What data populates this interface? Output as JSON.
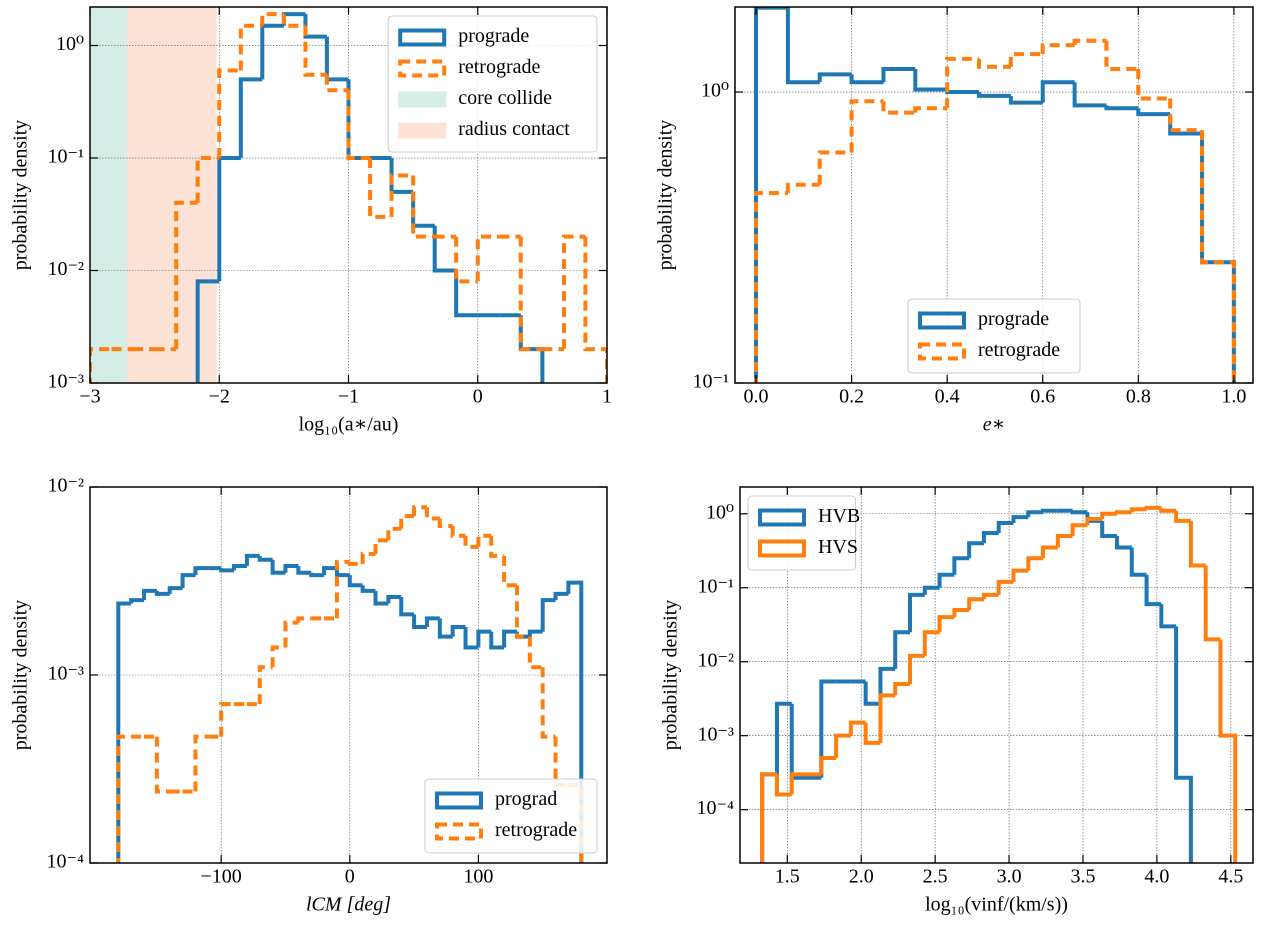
{
  "chart_data": [
    {
      "type": "histogram",
      "xlabel": "log₁₀(a∗/au)",
      "ylabel": "probability density",
      "xlim": [
        -3,
        1
      ],
      "ylim": [
        0.001,
        2.2
      ],
      "log_y": true,
      "grid": true,
      "legend": "upper right",
      "xticks": [
        {
          "value": -3,
          "label": "−3"
        },
        {
          "value": -2,
          "label": "−2"
        },
        {
          "value": -1,
          "label": "−1"
        },
        0,
        1
      ],
      "yticks": [
        {
          "value": 0.001,
          "label": "10⁻³"
        },
        {
          "value": 0.01,
          "label": "10⁻²"
        },
        {
          "value": 0.1,
          "label": "10⁻¹"
        },
        {
          "value": 1,
          "label": "10⁰"
        }
      ],
      "series": [
        {
          "name": "prograde",
          "color": "#1f77b4",
          "dashed": false,
          "bins": [
            -2.167,
            -2.0,
            -1.833,
            -1.667,
            -1.5,
            -1.333,
            -1.167,
            -1.0,
            -0.833,
            -0.667,
            -0.5,
            -0.333,
            -0.167,
            0,
            0.167,
            0.333,
            0.5
          ],
          "values": [
            0.008,
            0.1,
            0.5,
            1.5,
            1.9,
            1.2,
            0.5,
            0.1,
            0.1,
            0.05,
            0.025,
            0.01,
            0.004,
            0.004,
            0.004,
            0.002
          ]
        },
        {
          "name": "retrograde",
          "color": "#ff7f0e",
          "dashed": true,
          "bins": [
            -3,
            -2.833,
            -2.667,
            -2.5,
            -2.333,
            -2.167,
            -2.0,
            -1.833,
            -1.667,
            -1.5,
            -1.333,
            -1.167,
            -1.0,
            -0.833,
            -0.667,
            -0.5,
            -0.333,
            -0.167,
            0,
            0.167,
            0.333,
            0.5,
            0.667,
            0.833,
            1
          ],
          "values": [
            0.002,
            0.002,
            0.002,
            0.002,
            0.04,
            0.1,
            0.6,
            1.5,
            1.9,
            1.5,
            0.55,
            0.4,
            0.1,
            0.03,
            0.07,
            0.02,
            0.02,
            0.008,
            0.02,
            0.02,
            0.002,
            0.002,
            0.02,
            0.002
          ]
        }
      ],
      "spans": [
        {
          "name": "core collide",
          "color": "#d4ede6",
          "x": [
            -3,
            -2.71
          ]
        },
        {
          "name": "radius contact",
          "color": "#fde2d6",
          "x": [
            -2.71,
            -2.02
          ]
        }
      ]
    },
    {
      "type": "histogram",
      "xlabel": "e∗",
      "ylabel": "probability density",
      "xlim": [
        -0.044,
        1.04
      ],
      "ylim": [
        0.1,
        1.96
      ],
      "log_y": true,
      "grid": true,
      "legend": "lower center",
      "xticks": [
        {
          "value": 0,
          "label": "0.0"
        },
        0.2,
        0.4,
        0.6,
        0.8,
        {
          "value": 1,
          "label": "1.0"
        }
      ],
      "yticks": [
        {
          "value": 0.1,
          "label": "10⁻¹"
        },
        {
          "value": 1,
          "label": "10⁰"
        }
      ],
      "series": [
        {
          "name": "prograde",
          "color": "#1f77b4",
          "dashed": false,
          "bins": [
            0,
            0.0667,
            0.1333,
            0.2,
            0.2667,
            0.3333,
            0.4,
            0.4667,
            0.5333,
            0.6,
            0.6667,
            0.7333,
            0.8,
            0.8667,
            0.9333,
            1
          ],
          "values": [
            1.95,
            1.08,
            1.15,
            1.08,
            1.2,
            1.02,
            1.0,
            0.97,
            0.92,
            1.08,
            0.9,
            0.88,
            0.84,
            0.72,
            0.26
          ]
        },
        {
          "name": "retrograde",
          "color": "#ff7f0e",
          "dashed": true,
          "bins": [
            0,
            0.0667,
            0.1333,
            0.2,
            0.2667,
            0.3333,
            0.4,
            0.4667,
            0.5333,
            0.6,
            0.6667,
            0.7333,
            0.8,
            0.8667,
            0.9333,
            1
          ],
          "values": [
            0.45,
            0.48,
            0.62,
            0.93,
            0.85,
            0.88,
            1.3,
            1.22,
            1.35,
            1.45,
            1.5,
            1.2,
            0.95,
            0.74,
            0.26
          ]
        }
      ]
    },
    {
      "type": "histogram",
      "xlabel": "lCM [deg]",
      "ylabel": "probability density",
      "xlim": [
        -202,
        200
      ],
      "ylim": [
        0.0001,
        0.01
      ],
      "log_y": true,
      "grid": true,
      "legend": "lower right",
      "xticks": [
        {
          "value": -100,
          "label": "−100"
        },
        0,
        100
      ],
      "yticks": [
        {
          "value": 0.0001,
          "label": "10⁻⁴"
        },
        {
          "value": 0.001,
          "label": "10⁻³"
        },
        {
          "value": 0.01,
          "label": "10⁻²"
        }
      ],
      "series": [
        {
          "name": "prograd",
          "color": "#1f77b4",
          "dashed": false,
          "bins": [
            -180,
            -170,
            -160,
            -150,
            -140,
            -130,
            -120,
            -110,
            -100,
            -90,
            -80,
            -70,
            -60,
            -50,
            -40,
            -30,
            -20,
            -10,
            0,
            10,
            20,
            30,
            40,
            50,
            60,
            70,
            80,
            90,
            100,
            110,
            120,
            130,
            140,
            150,
            160,
            170,
            180
          ],
          "values": [
            0.0024,
            0.0025,
            0.0028,
            0.0027,
            0.0029,
            0.0034,
            0.0037,
            0.0037,
            0.0036,
            0.0038,
            0.0043,
            0.0041,
            0.0035,
            0.0038,
            0.0035,
            0.0034,
            0.0037,
            0.0034,
            0.003,
            0.0028,
            0.0024,
            0.0026,
            0.0021,
            0.0018,
            0.002,
            0.0016,
            0.0018,
            0.0014,
            0.0017,
            0.0014,
            0.0017,
            0.0016,
            0.0017,
            0.0025,
            0.0027,
            0.0031
          ]
        },
        {
          "name": "retrograde",
          "color": "#ff7f0e",
          "dashed": true,
          "bins": [
            -180,
            -170,
            -160,
            -150,
            -140,
            -130,
            -120,
            -110,
            -100,
            -90,
            -80,
            -70,
            -60,
            -50,
            -40,
            -30,
            -20,
            -10,
            0,
            10,
            20,
            30,
            40,
            50,
            60,
            70,
            80,
            90,
            100,
            110,
            120,
            130,
            140,
            150,
            160,
            170,
            180
          ],
          "values": [
            0.00047,
            0.00047,
            0.00047,
            0.00024,
            0.00024,
            0.00024,
            0.00047,
            0.00047,
            0.0007,
            0.0007,
            0.0007,
            0.0011,
            0.0014,
            0.0019,
            0.002,
            0.002,
            0.002,
            0.004,
            0.0039,
            0.0044,
            0.0052,
            0.006,
            0.007,
            0.0078,
            0.0068,
            0.0062,
            0.0055,
            0.0048,
            0.0055,
            0.0043,
            0.003,
            0.0016,
            0.0011,
            0.00047,
            0.00026,
            0.00026
          ]
        }
      ]
    },
    {
      "type": "histogram",
      "xlabel": "log₁₀(vinf/(km/s))",
      "ylabel": "probability density",
      "xlim": [
        1.18,
        4.65
      ],
      "ylim": [
        1.9e-05,
        2.3
      ],
      "log_y": true,
      "grid": true,
      "legend": "upper left",
      "xticks": [
        1.5,
        {
          "value": 2,
          "label": "2.0"
        },
        2.5,
        {
          "value": 3,
          "label": "3.0"
        },
        3.5,
        {
          "value": 4,
          "label": "4.0"
        },
        4.5
      ],
      "yticks": [
        {
          "value": 0.0001,
          "label": "10⁻⁴"
        },
        {
          "value": 0.001,
          "label": "10⁻³"
        },
        {
          "value": 0.01,
          "label": "10⁻²"
        },
        {
          "value": 0.1,
          "label": "10⁻¹"
        },
        {
          "value": 1,
          "label": "10⁰"
        }
      ],
      "series": [
        {
          "name": "HVB",
          "color": "#1f77b4",
          "dashed": false,
          "bins": [
            1.33,
            1.43,
            1.53,
            1.63,
            1.73,
            1.83,
            1.93,
            2.03,
            2.13,
            2.23,
            2.33,
            2.43,
            2.53,
            2.63,
            2.73,
            2.83,
            2.93,
            3.03,
            3.13,
            3.23,
            3.33,
            3.43,
            3.53,
            3.63,
            3.73,
            3.83,
            3.93,
            4.03,
            4.13,
            4.23
          ],
          "values": [
            0.0003,
            0.0027,
            0.00027,
            0.00027,
            0.0054,
            0.0054,
            0.0054,
            0.0027,
            0.008,
            0.025,
            0.08,
            0.1,
            0.15,
            0.25,
            0.4,
            0.55,
            0.75,
            0.9,
            1.05,
            1.1,
            1.1,
            1.05,
            0.8,
            0.5,
            0.35,
            0.15,
            0.06,
            0.03,
            0.00027
          ]
        },
        {
          "name": "HVS",
          "color": "#ff7f0e",
          "dashed": false,
          "bins": [
            1.33,
            1.43,
            1.53,
            1.63,
            1.73,
            1.83,
            1.93,
            2.03,
            2.13,
            2.23,
            2.33,
            2.43,
            2.53,
            2.63,
            2.73,
            2.83,
            2.93,
            3.03,
            3.13,
            3.23,
            3.33,
            3.43,
            3.53,
            3.63,
            3.73,
            3.83,
            3.93,
            4.03,
            4.13,
            4.23,
            4.33,
            4.43,
            4.53
          ],
          "values": [
            0.0003,
            0.00016,
            0.0003,
            0.0003,
            0.0005,
            0.001,
            0.0015,
            0.0008,
            0.0035,
            0.005,
            0.012,
            0.025,
            0.04,
            0.05,
            0.07,
            0.08,
            0.12,
            0.17,
            0.25,
            0.35,
            0.5,
            0.7,
            0.85,
            1.0,
            1.05,
            1.15,
            1.2,
            1.1,
            0.8,
            0.2,
            0.02,
            0.001
          ]
        }
      ]
    }
  ]
}
